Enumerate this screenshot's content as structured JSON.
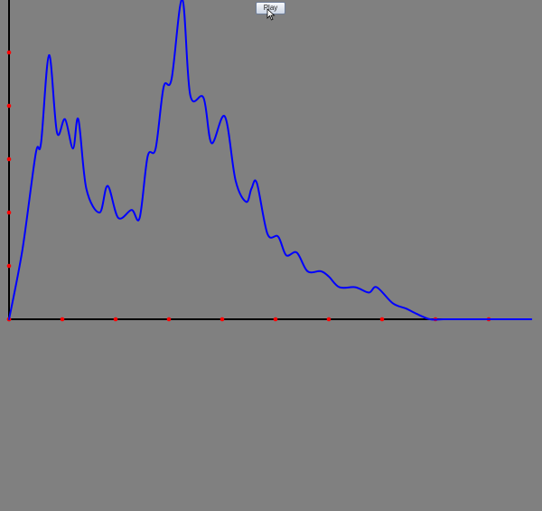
{
  "controls": {
    "play_label": "Play"
  },
  "colors": {
    "background": "#808080",
    "axis": "#000000",
    "tick": "#ff0000",
    "line": "#0000ff"
  },
  "icons": {
    "cursor": "mouse-pointer-icon"
  },
  "chart_data": {
    "type": "line",
    "xlim": [
      0,
      10
    ],
    "ylim": [
      0,
      5
    ],
    "xticks": [
      0,
      1,
      2,
      3,
      4,
      5,
      6,
      7,
      8,
      9
    ],
    "yticks": [
      0,
      1,
      2,
      3,
      4,
      5
    ],
    "grid": false,
    "series": [
      {
        "x": [
          0,
          0.25,
          0.5,
          0.6,
          0.75,
          0.9,
          1.05,
          1.2,
          1.3,
          1.45,
          1.7,
          1.85,
          2.05,
          2.3,
          2.45,
          2.6,
          2.75,
          2.9,
          3.05,
          3.25,
          3.4,
          3.65,
          3.8,
          4.05,
          4.25,
          4.45,
          4.55,
          4.65,
          4.85,
          5.05,
          5.2,
          5.4,
          5.6,
          5.85,
          6.0,
          6.2,
          6.5,
          6.75,
          6.9,
          7.2,
          7.45,
          7.65,
          7.9,
          8.15,
          8.4,
          8.6,
          8.85,
          9.1,
          9.3,
          9.8
        ],
        "y": [
          0,
          1.3,
          3.1,
          3.3,
          4.95,
          3.5,
          3.75,
          3.2,
          3.75,
          2.45,
          2.0,
          2.5,
          1.9,
          2.05,
          1.9,
          3.05,
          3.2,
          4.35,
          4.5,
          6.0,
          4.2,
          4.15,
          3.3,
          3.8,
          2.6,
          2.2,
          2.45,
          2.55,
          1.6,
          1.55,
          1.2,
          1.25,
          0.9,
          0.9,
          0.8,
          0.6,
          0.6,
          0.5,
          0.6,
          0.3,
          0.2,
          0.1,
          0.0,
          0.0,
          0.0,
          0.0,
          0.0,
          0.0,
          0.0,
          0.0
        ]
      }
    ]
  }
}
